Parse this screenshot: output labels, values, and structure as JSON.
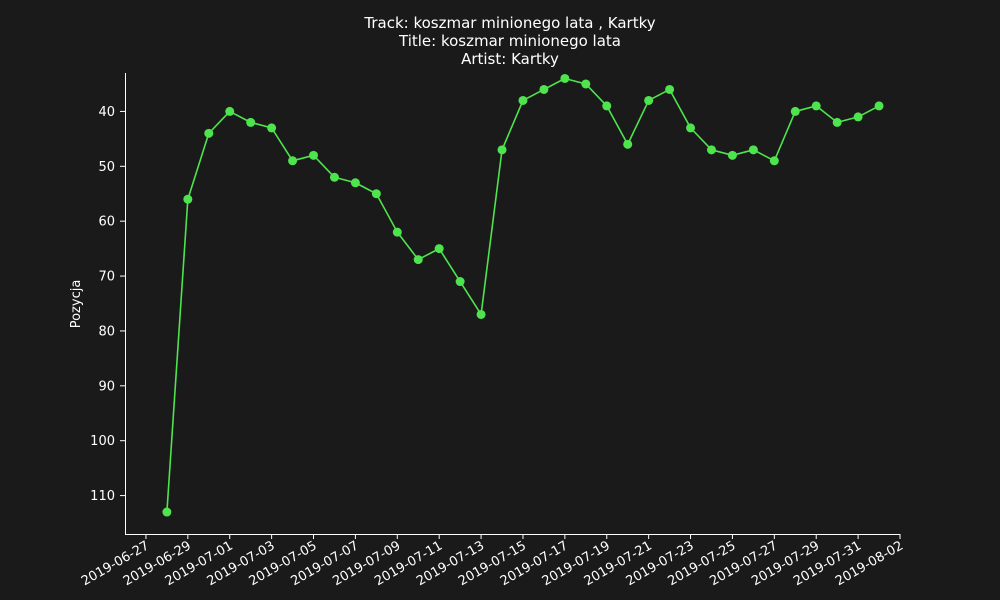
{
  "chart_data": {
    "type": "line",
    "title_lines": [
      "Track:  koszmar minionego lata , Kartky",
      "Title:  koszmar minionego lata",
      "Artist:  Kartky"
    ],
    "xlabel": "",
    "ylabel": "Pozycja",
    "y_inverted": true,
    "xlim": [
      "2019-06-26",
      "2019-08-02"
    ],
    "ylim": [
      117,
      33
    ],
    "x_ticks": [
      "2019-06-27",
      "2019-06-29",
      "2019-07-01",
      "2019-07-03",
      "2019-07-05",
      "2019-07-07",
      "2019-07-09",
      "2019-07-11",
      "2019-07-13",
      "2019-07-15",
      "2019-07-17",
      "2019-07-19",
      "2019-07-21",
      "2019-07-23",
      "2019-07-25",
      "2019-07-27",
      "2019-07-29",
      "2019-07-31",
      "2019-08-02"
    ],
    "y_ticks": [
      40,
      50,
      60,
      70,
      80,
      90,
      100,
      110
    ],
    "grid": false,
    "line_color": "#4ee44e",
    "background": "#1a1a1a",
    "series": [
      {
        "x": [
          "2019-06-28",
          "2019-06-29",
          "2019-06-30",
          "2019-07-01",
          "2019-07-02",
          "2019-07-03",
          "2019-07-04",
          "2019-07-05",
          "2019-07-06",
          "2019-07-07",
          "2019-07-08",
          "2019-07-09",
          "2019-07-10",
          "2019-07-11",
          "2019-07-12",
          "2019-07-13",
          "2019-07-14",
          "2019-07-15",
          "2019-07-16",
          "2019-07-17",
          "2019-07-18",
          "2019-07-19",
          "2019-07-20",
          "2019-07-21",
          "2019-07-22",
          "2019-07-23",
          "2019-07-24",
          "2019-07-25",
          "2019-07-26",
          "2019-07-27",
          "2019-07-28",
          "2019-07-29",
          "2019-07-30",
          "2019-07-31",
          "2019-08-01"
        ],
        "values": [
          113,
          56,
          44,
          40,
          42,
          43,
          49,
          48,
          52,
          53,
          55,
          62,
          67,
          65,
          71,
          77,
          47,
          38,
          36,
          34,
          35,
          39,
          46,
          38,
          36,
          43,
          47,
          48,
          47,
          49,
          40,
          39,
          42,
          41,
          39
        ]
      }
    ]
  }
}
